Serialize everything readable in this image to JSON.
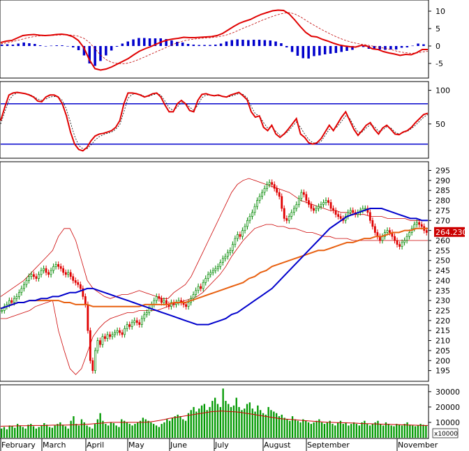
{
  "chart_data": [
    {
      "type": "line",
      "panel": "macd",
      "y_ticks": [
        10,
        5,
        0,
        -5
      ],
      "ylim": [
        -9,
        13
      ],
      "histogram_color": "#0000cc",
      "line_color": "#e00000",
      "signal_color": "#c00000",
      "macd_line": [
        1,
        1.4,
        1.6,
        2.3,
        3.0,
        3.2,
        3.3,
        3.1,
        3.0,
        3.1,
        3.3,
        3.4,
        3.2,
        2.7,
        1.6,
        -0.5,
        -4.0,
        -6.5,
        -6.9,
        -6.6,
        -6.0,
        -5.2,
        -4.4,
        -3.6,
        -2.5,
        -1.5,
        -0.8,
        -0.2,
        0.5,
        1.2,
        1.7,
        2.0,
        2.2,
        2.5,
        2.4,
        2.4,
        2.5,
        2.6,
        2.7,
        3.0,
        3.6,
        4.6,
        5.6,
        6.5,
        7.1,
        7.6,
        8.4,
        9.1,
        9.6,
        10.1,
        10.3,
        10.2,
        9.2,
        7.5,
        5.6,
        3.9,
        2.8,
        2.6,
        1.9,
        1.4,
        0.8,
        0.3,
        0.0,
        -0.2,
        -0.3,
        0.2,
        0.0,
        -0.8,
        -1.0,
        -1.6,
        -2.0,
        -2.3,
        -2.7,
        -2.4,
        -2.5,
        -1.9,
        -1.0,
        -1.0
      ],
      "signal_line": [
        0.6,
        0.9,
        1.2,
        1.6,
        2.0,
        2.4,
        2.7,
        2.9,
        3.0,
        3.0,
        3.1,
        3.2,
        3.2,
        3.1,
        2.8,
        2.2,
        1.0,
        -0.8,
        -2.6,
        -3.9,
        -4.7,
        -5.0,
        -5.1,
        -4.9,
        -4.4,
        -3.8,
        -3.1,
        -2.4,
        -1.7,
        -1.0,
        -0.3,
        0.4,
        1.0,
        1.5,
        1.8,
        2.0,
        2.2,
        2.3,
        2.4,
        2.6,
        2.9,
        3.3,
        3.9,
        4.6,
        5.3,
        5.9,
        6.6,
        7.3,
        7.9,
        8.5,
        9.0,
        9.4,
        9.6,
        9.2,
        8.4,
        7.4,
        6.4,
        5.5,
        4.6,
        3.8,
        3.0,
        2.3,
        1.7,
        1.2,
        0.8,
        0.5,
        0.3,
        0.0,
        -0.3,
        -0.6,
        -0.9,
        -1.3,
        -1.7,
        -1.9,
        -2.1,
        -2.0,
        -1.7,
        -1.5
      ],
      "histogram": [
        0.4,
        0.5,
        0.4,
        0.7,
        1.0,
        0.8,
        0.6,
        0.2,
        0.0,
        0.1,
        0.2,
        0.2,
        0.0,
        -0.4,
        -1.2,
        -2.7,
        -5.0,
        -5.7,
        -4.3,
        -2.7,
        -1.3,
        -0.2,
        0.7,
        1.3,
        1.9,
        2.3,
        2.3,
        2.2,
        2.2,
        2.2,
        2.0,
        1.6,
        1.2,
        1.0,
        0.6,
        0.4,
        0.3,
        0.3,
        0.3,
        0.4,
        0.7,
        1.3,
        1.7,
        1.9,
        1.8,
        1.7,
        1.8,
        1.8,
        1.7,
        1.6,
        1.3,
        0.8,
        -0.4,
        -1.7,
        -2.8,
        -3.5,
        -3.6,
        -2.9,
        -2.7,
        -2.4,
        -2.2,
        -2.0,
        -1.7,
        -1.4,
        -1.1,
        -0.3,
        -0.3,
        -0.8,
        -0.7,
        -1.0,
        -1.1,
        -1.0,
        -1.0,
        -0.5,
        -0.4,
        0.1,
        0.7,
        0.5
      ]
    },
    {
      "type": "line",
      "panel": "stochastic",
      "y_ticks": [
        100,
        50
      ],
      "ylim": [
        0,
        112
      ],
      "upper_level": 80,
      "lower_level": 20,
      "level_color": "#0000cc",
      "k_line_color": "#e00000",
      "d_line_color": "#000000",
      "k_line": [
        55,
        75,
        93,
        96,
        97,
        96,
        95,
        93,
        90,
        84,
        83,
        90,
        93,
        93,
        90,
        80,
        62,
        38,
        20,
        12,
        10,
        15,
        25,
        32,
        35,
        36,
        38,
        40,
        45,
        55,
        80,
        96,
        96,
        95,
        93,
        90,
        92,
        95,
        96,
        90,
        78,
        68,
        68,
        80,
        85,
        80,
        70,
        68,
        85,
        94,
        95,
        93,
        92,
        93,
        91,
        90,
        93,
        95,
        97,
        92,
        86,
        68,
        60,
        62,
        45,
        40,
        48,
        35,
        30,
        35,
        42,
        50,
        58,
        35,
        30,
        22,
        20,
        22,
        28,
        38,
        48,
        40,
        50,
        60,
        68,
        55,
        42,
        33,
        40,
        48,
        52,
        42,
        35,
        44,
        48,
        42,
        35,
        34,
        38,
        40,
        45,
        52,
        58,
        64,
        66
      ],
      "d_line": [
        50,
        68,
        85,
        93,
        96,
        96,
        95,
        94,
        91,
        87,
        85,
        87,
        90,
        91,
        90,
        85,
        72,
        52,
        32,
        18,
        13,
        13,
        19,
        26,
        31,
        34,
        36,
        38,
        42,
        49,
        68,
        88,
        94,
        95,
        94,
        91,
        91,
        93,
        95,
        93,
        84,
        74,
        70,
        75,
        82,
        81,
        75,
        70,
        78,
        89,
        93,
        93,
        92,
        92,
        91,
        90,
        91,
        93,
        95,
        94,
        89,
        76,
        65,
        62,
        52,
        44,
        46,
        39,
        33,
        34,
        39,
        46,
        53,
        45,
        35,
        27,
        22,
        21,
        24,
        33,
        42,
        42,
        46,
        54,
        62,
        58,
        47,
        38,
        38,
        44,
        49,
        46,
        39,
        41,
        46,
        44,
        38,
        35,
        37,
        39,
        43,
        48,
        54,
        60,
        64
      ],
      "stoch_line_curve": [
        56,
        76,
        93,
        97,
        98,
        97,
        95,
        94,
        91,
        86,
        82,
        86,
        93,
        94,
        90,
        82,
        60,
        35,
        16,
        10,
        9,
        14,
        25,
        32,
        34,
        35,
        36,
        40,
        47,
        57,
        82,
        96,
        97,
        95,
        93,
        90,
        92,
        95,
        97,
        92,
        79,
        67,
        65,
        80,
        86,
        82,
        70,
        66,
        84,
        94,
        95,
        94,
        92,
        93,
        90,
        89,
        92,
        95,
        97,
        93,
        87,
        70,
        58,
        60,
        46,
        39,
        47,
        35,
        29,
        34,
        41,
        50,
        57,
        36,
        28,
        21,
        18,
        22,
        28,
        38,
        48,
        42,
        49,
        60,
        68,
        56,
        43,
        32,
        38,
        48,
        52,
        43,
        34,
        43,
        47,
        42,
        35,
        33,
        37,
        40,
        45,
        51,
        57,
        63,
        67
      ]
    },
    {
      "type": "line",
      "panel": "price",
      "y_ticks": [
        295,
        290,
        285,
        280,
        275,
        270,
        265,
        260,
        255,
        250,
        245,
        240,
        235,
        230,
        225,
        220,
        215,
        210,
        205,
        200,
        195
      ],
      "ylim": [
        190,
        299
      ],
      "last_price_label": "264.230",
      "last_price": 264.23,
      "ma_fast_color": "#0000cc",
      "ma_slow_color": "#e86010",
      "band_color": "#cc0000",
      "up_color": "#008800",
      "down_color": "#e00000",
      "closes": [
        225,
        227,
        228,
        230,
        229,
        231,
        232,
        234,
        236,
        238,
        240,
        242,
        243,
        242,
        241,
        243,
        245,
        246,
        244,
        243,
        245,
        247,
        248,
        247,
        246,
        244,
        243,
        244,
        242,
        240,
        239,
        238,
        236,
        232,
        228,
        215,
        200,
        195,
        205,
        210,
        208,
        212,
        211,
        213,
        212,
        213,
        214,
        215,
        214,
        213,
        216,
        218,
        217,
        219,
        220,
        219,
        218,
        221,
        223,
        224,
        226,
        228,
        230,
        232,
        231,
        229,
        230,
        228,
        227,
        229,
        228,
        229,
        230,
        229,
        228,
        227,
        229,
        231,
        233,
        235,
        237,
        236,
        239,
        241,
        243,
        244,
        245,
        246,
        247,
        249,
        251,
        252,
        254,
        255,
        258,
        261,
        263,
        262,
        265,
        267,
        270,
        272,
        274,
        277,
        280,
        282,
        284,
        286,
        288,
        289,
        288,
        286,
        284,
        282,
        276,
        271,
        270,
        272,
        274,
        276,
        278,
        281,
        284,
        283,
        280,
        278,
        276,
        275,
        276,
        277,
        278,
        279,
        280,
        279,
        276,
        275,
        273,
        272,
        271,
        270,
        272,
        274,
        275,
        274,
        273,
        274,
        275,
        276,
        276,
        274,
        270,
        267,
        264,
        262,
        260,
        262,
        264,
        265,
        264,
        262,
        260,
        258,
        257,
        259,
        260,
        262,
        264,
        266,
        268,
        269,
        268,
        267,
        265,
        264
      ],
      "ma_fast": [
        226,
        227,
        228,
        229,
        229,
        230,
        230,
        231,
        231,
        232,
        232,
        233,
        234,
        234,
        235,
        236,
        236,
        235,
        234,
        233,
        232,
        231,
        230,
        229,
        228,
        227,
        226,
        225,
        224,
        223,
        222,
        221,
        220,
        219,
        218,
        218,
        218,
        219,
        220,
        221,
        223,
        224,
        226,
        228,
        230,
        232,
        234,
        236,
        239,
        242,
        245,
        248,
        251,
        254,
        257,
        260,
        263,
        266,
        268,
        270,
        272,
        273,
        274,
        275,
        276,
        276,
        276,
        275,
        274,
        273,
        272,
        271,
        271,
        270,
        270
      ],
      "ma_slow": [
        226,
        227,
        228,
        229,
        229,
        230,
        230,
        230,
        230,
        230,
        230,
        229,
        229,
        228,
        228,
        228,
        227,
        227,
        227,
        227,
        227,
        227,
        227,
        227,
        227,
        228,
        228,
        228,
        228,
        228,
        229,
        229,
        229,
        230,
        231,
        232,
        233,
        234,
        235,
        236,
        237,
        238,
        239,
        241,
        242,
        244,
        245,
        247,
        248,
        249,
        250,
        251,
        252,
        253,
        254,
        255,
        255,
        256,
        257,
        258,
        259,
        259,
        260,
        261,
        261,
        262,
        262,
        263,
        264,
        264,
        265,
        265,
        266,
        266,
        266
      ],
      "band_upper": [
        232,
        234,
        236,
        238,
        240,
        243,
        246,
        249,
        252,
        255,
        262,
        266,
        266,
        260,
        250,
        240,
        236,
        234,
        232,
        231,
        232,
        233,
        233,
        234,
        235,
        234,
        233,
        232,
        231,
        231,
        234,
        236,
        238,
        242,
        248,
        254,
        260,
        266,
        272,
        278,
        284,
        288,
        290,
        291,
        290,
        289,
        288,
        287,
        286,
        285,
        284,
        282,
        280,
        279,
        278,
        277,
        276,
        275,
        275,
        274,
        274,
        273,
        273,
        273,
        272,
        272,
        272,
        271,
        271,
        271,
        271,
        270,
        270,
        270,
        270
      ],
      "band_lower": [
        221,
        221,
        222,
        223,
        224,
        225,
        227,
        228,
        229,
        230,
        215,
        205,
        196,
        193,
        196,
        204,
        212,
        216,
        219,
        221,
        222,
        223,
        224,
        224,
        225,
        225,
        225,
        225,
        226,
        227,
        228,
        229,
        230,
        231,
        232,
        234,
        237,
        240,
        243,
        247,
        252,
        256,
        260,
        263,
        266,
        267,
        268,
        268,
        267,
        267,
        266,
        266,
        265,
        264,
        264,
        263,
        262,
        262,
        261,
        261,
        261,
        260,
        260,
        260,
        260,
        260,
        260,
        260,
        260,
        260,
        260,
        260,
        260,
        260,
        260
      ]
    },
    {
      "type": "bar",
      "panel": "volume",
      "y_ticks": [
        30000,
        20000,
        10000
      ],
      "ylim": [
        0,
        34000
      ],
      "unit_label": "x10000",
      "bar_color": "#009900",
      "ma_color": "#cc0000",
      "volume": [
        6000,
        7000,
        5500,
        8000,
        7500,
        6500,
        9000,
        8000,
        7000,
        6000,
        8500,
        9000,
        7500,
        6000,
        7000,
        8000,
        9500,
        8500,
        7000,
        6500,
        8000,
        9000,
        10000,
        8500,
        7500,
        6000,
        11000,
        14000,
        9000,
        8000,
        12000,
        10000,
        8000,
        7000,
        6000,
        9000,
        12000,
        16000,
        11000,
        9000,
        8000,
        10000,
        9500,
        8000,
        7000,
        12000,
        11000,
        10000,
        9000,
        8000,
        9000,
        10000,
        11000,
        13000,
        12000,
        11000,
        10000,
        9000,
        8000,
        7000,
        9000,
        10000,
        12000,
        11000,
        13000,
        14000,
        15000,
        14000,
        12000,
        11000,
        16000,
        18000,
        20000,
        17000,
        19000,
        21000,
        22000,
        18000,
        20000,
        24000,
        26000,
        22000,
        20000,
        32000,
        24000,
        22000,
        20000,
        21000,
        26000,
        20000,
        18000,
        19000,
        22000,
        23000,
        19000,
        17000,
        21000,
        18000,
        16000,
        15000,
        20000,
        18000,
        17000,
        16000,
        14000,
        15000,
        13000,
        12000,
        11000,
        14000,
        12000,
        11000,
        10000,
        12000,
        11000,
        10000,
        9000,
        10000,
        11000,
        12000,
        10000,
        9000,
        10000,
        11000,
        9000,
        8000,
        10000,
        11000,
        9000,
        10000,
        8000,
        9000,
        10000,
        9000,
        8000,
        10000,
        11000,
        9000,
        8000,
        9000,
        10000,
        11000,
        9000,
        8000,
        10000,
        9000,
        8000,
        7500,
        9000,
        8500,
        8000,
        9000,
        10000,
        8500,
        8000,
        7500,
        8000,
        9000,
        8500,
        8000
      ],
      "volume_ma": [
        7500,
        7600,
        7600,
        7700,
        7800,
        7800,
        7900,
        8000,
        8000,
        8000,
        8100,
        8200,
        8200,
        8200,
        8300,
        8400,
        8500,
        8600,
        8800,
        9000,
        9300,
        9500,
        9800,
        10000,
        10000,
        10000,
        10000,
        10000,
        10000,
        10000,
        10100,
        10300,
        10700,
        11200,
        11800,
        12500,
        13000,
        13500,
        14000,
        14500,
        15000,
        15500,
        16000,
        16500,
        17000,
        17200,
        17400,
        17200,
        17000,
        16800,
        16500,
        16000,
        15500,
        15000,
        14500,
        14000,
        13500,
        13000,
        12500,
        12200,
        12000,
        11800,
        11500,
        11200,
        11000,
        10800,
        10500,
        10300,
        10100,
        10000,
        9900,
        9800,
        9700,
        9600,
        9500,
        9300,
        9200,
        9100,
        9000,
        8900,
        8800,
        8700,
        8600,
        8500,
        8400,
        8300,
        8200,
        8100,
        8000,
        8000
      ]
    },
    {
      "type": "axis",
      "panel": "months",
      "months": [
        "February",
        "March",
        "April",
        "May",
        "June",
        "July",
        "August",
        "September",
        "November"
      ]
    }
  ]
}
